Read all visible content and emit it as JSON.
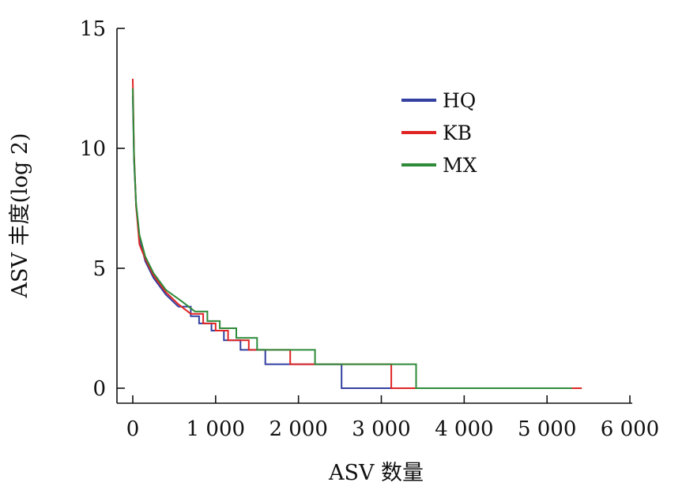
{
  "chart_data": {
    "type": "line",
    "title": "",
    "xlabel": "ASV 数量",
    "ylabel": "ASV 丰度(log 2)",
    "xlim": [
      0,
      6000
    ],
    "ylim": [
      0,
      15
    ],
    "x_ticks": [
      0,
      1000,
      2000,
      3000,
      4000,
      5000,
      6000
    ],
    "x_tick_labels": [
      "0",
      "1 000",
      "2 000",
      "3 000",
      "4 000",
      "5 000",
      "6 000"
    ],
    "y_ticks": [
      0,
      5,
      10,
      15
    ],
    "y_tick_labels": [
      "0",
      "5",
      "10",
      "15"
    ],
    "grid": false,
    "legend_position": "top-right",
    "series": [
      {
        "name": "HQ",
        "color": "#3340a0",
        "points": [
          [
            0,
            12.2
          ],
          [
            15,
            9.5
          ],
          [
            40,
            7.6
          ],
          [
            80,
            6.3
          ],
          [
            150,
            5.3
          ],
          [
            250,
            4.6
          ],
          [
            400,
            3.9
          ],
          [
            550,
            3.4
          ],
          [
            700,
            3.0
          ],
          [
            800,
            2.7
          ],
          [
            950,
            2.4
          ],
          [
            1100,
            2.0
          ],
          [
            1300,
            1.6
          ],
          [
            1600,
            1.0
          ],
          [
            2500,
            1.0
          ],
          [
            2520,
            0
          ],
          [
            5300,
            0
          ]
        ]
      },
      {
        "name": "KB",
        "color": "#e02424",
        "points": [
          [
            0,
            12.9
          ],
          [
            15,
            9.8
          ],
          [
            40,
            7.6
          ],
          [
            80,
            6.0
          ],
          [
            150,
            5.4
          ],
          [
            250,
            4.7
          ],
          [
            400,
            4.0
          ],
          [
            550,
            3.5
          ],
          [
            700,
            3.1
          ],
          [
            850,
            2.7
          ],
          [
            1000,
            2.4
          ],
          [
            1150,
            2.0
          ],
          [
            1400,
            1.6
          ],
          [
            1900,
            1.0
          ],
          [
            3100,
            1.0
          ],
          [
            3120,
            0
          ],
          [
            5420,
            0
          ]
        ]
      },
      {
        "name": "MX",
        "color": "#2e8b3a",
        "points": [
          [
            0,
            12.5
          ],
          [
            15,
            9.6
          ],
          [
            40,
            7.7
          ],
          [
            80,
            6.4
          ],
          [
            150,
            5.5
          ],
          [
            250,
            4.8
          ],
          [
            400,
            4.1
          ],
          [
            600,
            3.6
          ],
          [
            750,
            3.2
          ],
          [
            900,
            2.8
          ],
          [
            1050,
            2.5
          ],
          [
            1250,
            2.1
          ],
          [
            1500,
            1.6
          ],
          [
            2200,
            1.0
          ],
          [
            3400,
            1.0
          ],
          [
            3420,
            0
          ],
          [
            5300,
            0
          ]
        ]
      }
    ]
  }
}
